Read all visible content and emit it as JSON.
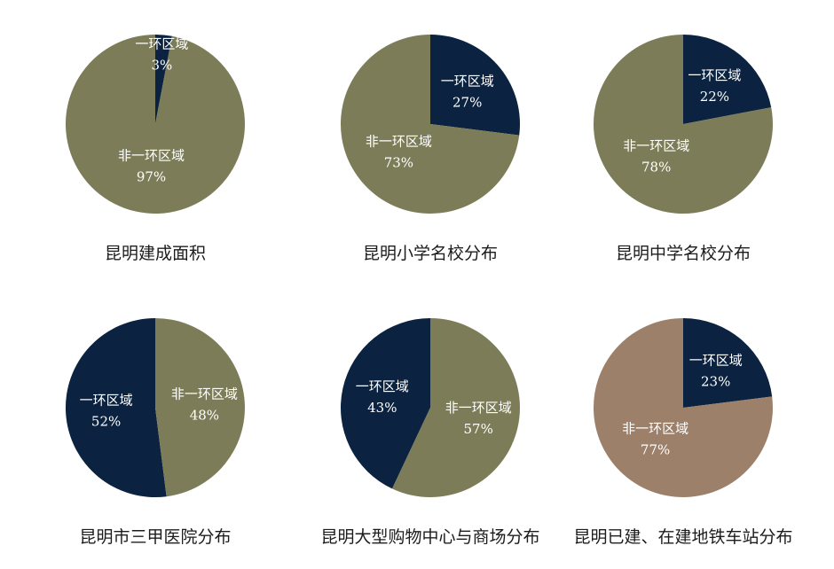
{
  "colors": {
    "inner": "#0b2340",
    "outer": "#7d7c58",
    "outer_alt": "#9c806a",
    "label_text": "#ffffff",
    "title_text": "#1c1c1c"
  },
  "chart_data": [
    {
      "type": "pie",
      "title": "昆明建成面积",
      "start": 0,
      "slices": [
        {
          "label": "一环区域",
          "value_label": "3%",
          "value": 3,
          "color_key": "inner"
        },
        {
          "label": "非一环区域",
          "value_label": "97%",
          "value": 97,
          "color_key": "outer"
        }
      ]
    },
    {
      "type": "pie",
      "title": "昆明小学名校分布",
      "start": 0,
      "slices": [
        {
          "label": "一环区域",
          "value_label": "27%",
          "value": 27,
          "color_key": "inner"
        },
        {
          "label": "非一环区域",
          "value_label": "73%",
          "value": 73,
          "color_key": "outer"
        }
      ]
    },
    {
      "type": "pie",
      "title": "昆明中学名校分布",
      "start": 0,
      "slices": [
        {
          "label": "一环区域",
          "value_label": "22%",
          "value": 22,
          "color_key": "inner"
        },
        {
          "label": "非一环区域",
          "value_label": "78%",
          "value": 78,
          "color_key": "outer"
        }
      ]
    },
    {
      "type": "pie",
      "title": "昆明市三甲医院分布",
      "start": 48,
      "slices": [
        {
          "label": "一环区域",
          "value_label": "52%",
          "value": 52,
          "color_key": "inner"
        },
        {
          "label": "非一环区域",
          "value_label": "48%",
          "value": 48,
          "color_key": "outer"
        }
      ]
    },
    {
      "type": "pie",
      "title": "昆明大型购物中心与商场分布",
      "start": 57,
      "slices": [
        {
          "label": "一环区域",
          "value_label": "43%",
          "value": 43,
          "color_key": "inner"
        },
        {
          "label": "非一环区域",
          "value_label": "57%",
          "value": 57,
          "color_key": "outer"
        }
      ]
    },
    {
      "type": "pie",
      "title": "昆明已建、在建地铁车站分布",
      "start": 0,
      "slices": [
        {
          "label": "一环区域",
          "value_label": "23%",
          "value": 23,
          "color_key": "inner"
        },
        {
          "label": "非一环区域",
          "value_label": "77%",
          "value": 77,
          "color_key": "outer_alt"
        }
      ]
    }
  ]
}
